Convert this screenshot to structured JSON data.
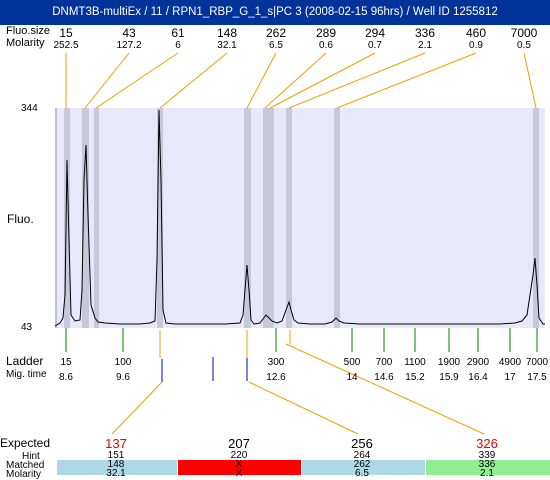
{
  "header": {
    "title": "DNMT3B-multiEx / 11 / RPN1_RBP_G_1_s|PC 3 (2008-02-15 96hrs) / Well ID 1255812"
  },
  "top_labels": {
    "row1": "Fluo.size",
    "row2": "Molarity"
  },
  "peaks": [
    {
      "size": "15",
      "molarity": "252.5"
    },
    {
      "size": "43",
      "molarity": "127.2"
    },
    {
      "size": "61",
      "molarity": "6"
    },
    {
      "size": "148",
      "molarity": "32.1"
    },
    {
      "size": "262",
      "molarity": "6.5"
    },
    {
      "size": "289",
      "molarity": "0.6"
    },
    {
      "size": "294",
      "molarity": "0.7"
    },
    {
      "size": "336",
      "molarity": "2.1"
    },
    {
      "size": "460",
      "molarity": "0.9"
    },
    {
      "size": "7000",
      "molarity": "0.5"
    }
  ],
  "axis": {
    "ymax": "344",
    "ymin": "43",
    "ylabel": "Fluo."
  },
  "ladder": {
    "label": "Ladder",
    "migtime_label": "Mig. time",
    "items": [
      {
        "bp": "15",
        "time": "8.6"
      },
      {
        "bp": "100",
        "time": "9.6"
      },
      {
        "bp": "300",
        "time": "12.6"
      },
      {
        "bp": "500",
        "time": "14"
      },
      {
        "bp": "700",
        "time": "14.6"
      },
      {
        "bp": "1100",
        "time": "15.2"
      },
      {
        "bp": "1900",
        "time": "15.9"
      },
      {
        "bp": "2900",
        "time": "16.4"
      },
      {
        "bp": "4900",
        "time": "17"
      },
      {
        "bp": "7000",
        "time": "17.5"
      }
    ]
  },
  "table": {
    "expected_label": "Expected",
    "hint_label": "Hint",
    "matched_label": "Matched",
    "molarity_label": "Molarity",
    "columns": [
      {
        "expected": "137",
        "hint": "151",
        "matched": "148",
        "molarity": "32.1",
        "status": "ok"
      },
      {
        "expected": "207",
        "hint": "220",
        "matched": "X",
        "molarity": "X",
        "status": "missing"
      },
      {
        "expected": "256",
        "hint": "264",
        "matched": "262",
        "molarity": "6.5",
        "status": "ok"
      },
      {
        "expected": "326",
        "hint": "339",
        "matched": "336",
        "molarity": "2.1",
        "status": "match"
      }
    ]
  },
  "colors": {
    "title_bar": "#003399",
    "plot_bg": "#e8e8fa",
    "highlight_band": "#c8c8da",
    "connector": "#f0a000",
    "ladder_tick": "#008000",
    "expected_tick": "#0000cc",
    "expected_red": "#ee0000",
    "cell_ok": "#add8e6",
    "cell_missing": "#ff0000",
    "cell_match": "#90ee90"
  }
}
